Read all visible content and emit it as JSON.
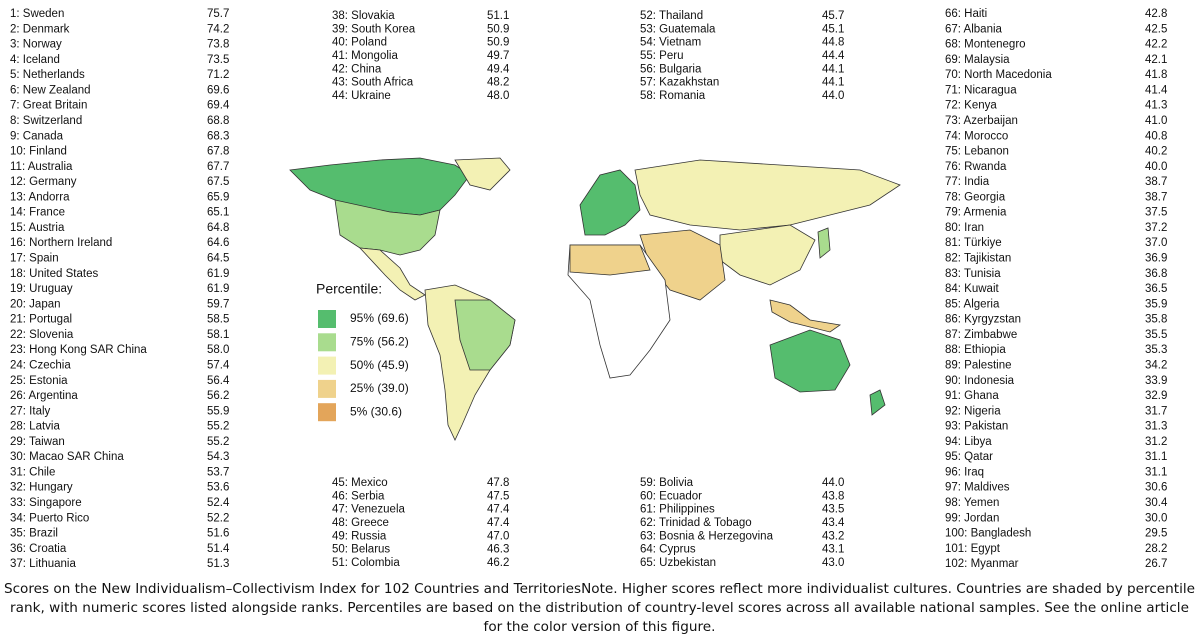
{
  "columns": [
    {
      "entries": [
        {
          "label": "1: Sweden",
          "score": "75.7"
        },
        {
          "label": "2: Denmark",
          "score": "74.2"
        },
        {
          "label": "3: Norway",
          "score": "73.8"
        },
        {
          "label": "4: Iceland",
          "score": "73.5"
        },
        {
          "label": "5: Netherlands",
          "score": "71.2"
        },
        {
          "label": "6: New Zealand",
          "score": "69.6"
        },
        {
          "label": "7: Great Britain",
          "score": "69.4"
        },
        {
          "label": "8: Switzerland",
          "score": "68.8"
        },
        {
          "label": "9: Canada",
          "score": "68.3"
        },
        {
          "label": "10: Finland",
          "score": "67.8"
        },
        {
          "label": "11: Australia",
          "score": "67.7"
        },
        {
          "label": "12: Germany",
          "score": "67.5"
        },
        {
          "label": "13: Andorra",
          "score": "65.9"
        },
        {
          "label": "14: France",
          "score": "65.1"
        },
        {
          "label": "15: Austria",
          "score": "64.8"
        },
        {
          "label": "16: Northern Ireland",
          "score": "64.6"
        },
        {
          "label": "17: Spain",
          "score": "64.5"
        },
        {
          "label": "18: United States",
          "score": "61.9"
        },
        {
          "label": "19: Uruguay",
          "score": "61.9"
        },
        {
          "label": "20: Japan",
          "score": "59.7"
        },
        {
          "label": "21: Portugal",
          "score": "58.5"
        },
        {
          "label": "22: Slovenia",
          "score": "58.1"
        },
        {
          "label": "23: Hong Kong SAR China",
          "score": "58.0"
        },
        {
          "label": "24: Czechia",
          "score": "57.4"
        },
        {
          "label": "25: Estonia",
          "score": "56.4"
        },
        {
          "label": "26: Argentina",
          "score": "56.2"
        },
        {
          "label": "27: Italy",
          "score": "55.9"
        },
        {
          "label": "28: Latvia",
          "score": "55.2"
        },
        {
          "label": "29: Taiwan",
          "score": "55.2"
        },
        {
          "label": "30: Macao SAR China",
          "score": "54.3"
        },
        {
          "label": "31: Chile",
          "score": "53.7"
        },
        {
          "label": "32: Hungary",
          "score": "53.6"
        },
        {
          "label": "33: Singapore",
          "score": "52.4"
        },
        {
          "label": "34: Puerto Rico",
          "score": "52.2"
        },
        {
          "label": "35: Brazil",
          "score": "51.6"
        },
        {
          "label": "36: Croatia",
          "score": "51.4"
        },
        {
          "label": "37: Lithuania",
          "score": "51.3"
        }
      ]
    },
    {
      "entries": [
        {
          "label": "38: Slovakia",
          "score": "51.1"
        },
        {
          "label": "39: South Korea",
          "score": "50.9"
        },
        {
          "label": "40: Poland",
          "score": "50.9"
        },
        {
          "label": "41: Mongolia",
          "score": "49.7"
        },
        {
          "label": "42: China",
          "score": "49.4"
        },
        {
          "label": "43: South Africa",
          "score": "48.2"
        },
        {
          "label": "44: Ukraine",
          "score": "48.0"
        }
      ]
    },
    {
      "entries": [
        {
          "label": "52: Thailand",
          "score": "45.7"
        },
        {
          "label": "53: Guatemala",
          "score": "45.1"
        },
        {
          "label": "54: Vietnam",
          "score": "44.8"
        },
        {
          "label": "55: Peru",
          "score": "44.4"
        },
        {
          "label": "56: Bulgaria",
          "score": "44.1"
        },
        {
          "label": "57: Kazakhstan",
          "score": "44.1"
        },
        {
          "label": "58: Romania",
          "score": "44.0"
        }
      ]
    },
    {
      "entries": [
        {
          "label": "66: Haiti",
          "score": "42.8"
        },
        {
          "label": "67: Albania",
          "score": "42.5"
        },
        {
          "label": "68: Montenegro",
          "score": "42.2"
        },
        {
          "label": "69: Malaysia",
          "score": "42.1"
        },
        {
          "label": "70: North Macedonia",
          "score": "41.8"
        },
        {
          "label": "71: Nicaragua",
          "score": "41.4"
        },
        {
          "label": "72: Kenya",
          "score": "41.3"
        },
        {
          "label": "73: Azerbaijan",
          "score": "41.0"
        },
        {
          "label": "74: Morocco",
          "score": "40.8"
        },
        {
          "label": "75: Lebanon",
          "score": "40.2"
        },
        {
          "label": "76: Rwanda",
          "score": "40.0"
        },
        {
          "label": "77: India",
          "score": "38.7"
        },
        {
          "label": "78: Georgia",
          "score": "38.7"
        },
        {
          "label": "79: Armenia",
          "score": "37.5"
        },
        {
          "label": "80: Iran",
          "score": "37.2"
        },
        {
          "label": "81: Türkiye",
          "score": "37.0"
        },
        {
          "label": "82: Tajikistan",
          "score": "36.9"
        },
        {
          "label": "83: Tunisia",
          "score": "36.8"
        },
        {
          "label": "84: Kuwait",
          "score": "36.5"
        },
        {
          "label": "85: Algeria",
          "score": "35.9"
        },
        {
          "label": "86: Kyrgyzstan",
          "score": "35.8"
        },
        {
          "label": "87: Zimbabwe",
          "score": "35.5"
        },
        {
          "label": "88: Ethiopia",
          "score": "35.3"
        },
        {
          "label": "89: Palestine",
          "score": "34.2"
        },
        {
          "label": "90: Indonesia",
          "score": "33.9"
        },
        {
          "label": "91: Ghana",
          "score": "32.9"
        },
        {
          "label": "92: Nigeria",
          "score": "31.7"
        },
        {
          "label": "93: Pakistan",
          "score": "31.3"
        },
        {
          "label": "94: Libya",
          "score": "31.2"
        },
        {
          "label": "95: Qatar",
          "score": "31.1"
        },
        {
          "label": "96: Iraq",
          "score": "31.1"
        },
        {
          "label": "97: Maldives",
          "score": "30.6"
        },
        {
          "label": "98: Yemen",
          "score": "30.4"
        },
        {
          "label": "99: Jordan",
          "score": "30.0"
        },
        {
          "label": "100: Bangladesh",
          "score": "29.5"
        },
        {
          "label": "101: Egypt",
          "score": "28.2"
        },
        {
          "label": "102: Myanmar",
          "score": "26.7"
        }
      ]
    },
    {
      "entries": [
        {
          "label": "45: Mexico",
          "score": "47.8"
        },
        {
          "label": "46: Serbia",
          "score": "47.5"
        },
        {
          "label": "47: Venezuela",
          "score": "47.4"
        },
        {
          "label": "48: Greece",
          "score": "47.4"
        },
        {
          "label": "49: Russia",
          "score": "47.0"
        },
        {
          "label": "50: Belarus",
          "score": "46.3"
        },
        {
          "label": "51: Colombia",
          "score": "46.2"
        }
      ]
    },
    {
      "entries": [
        {
          "label": "59: Bolivia",
          "score": "44.0"
        },
        {
          "label": "60: Ecuador",
          "score": "43.8"
        },
        {
          "label": "61: Philippines",
          "score": "43.5"
        },
        {
          "label": "62: Trinidad & Tobago",
          "score": "43.4"
        },
        {
          "label": "63: Bosnia & Herzegovina",
          "score": "43.2"
        },
        {
          "label": "64: Cyprus",
          "score": "43.1"
        },
        {
          "label": "65: Uzbekistan",
          "score": "43.0"
        }
      ]
    }
  ],
  "legend": {
    "title": "Percentile:",
    "items": [
      {
        "label": "95% (69.6)",
        "color": "#55bd6e"
      },
      {
        "label": "75% (56.2)",
        "color": "#a9dc8e"
      },
      {
        "label": "50% (45.9)",
        "color": "#f3f1b4"
      },
      {
        "label": "25% (39.0)",
        "color": "#efd28c"
      },
      {
        "label": "5% (30.6)",
        "color": "#e3a55a"
      }
    ]
  },
  "caption": "Scores on the New Individualism–Collectivism Index for 102 Countries and TerritoriesNote.    Higher scores reflect more individualist cultures. Countries are shaded by percentile rank, with numeric scores listed alongside ranks. Percentiles are based on the distribution of country-level scores across all available national samples. See the online article for the color version of this figure."
}
